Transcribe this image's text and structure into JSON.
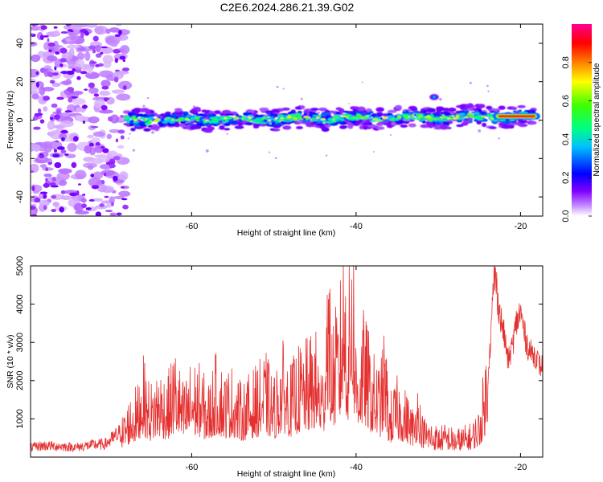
{
  "figure_title": "C2E6.2024.286.21.39.G02",
  "colors": {
    "snr_line": "#e53030",
    "frame": "#000000"
  },
  "chart_data": [
    {
      "type": "heatmap",
      "title": "",
      "xlabel": "Height of straight line (km)",
      "ylabel": "Frequency (Hz)",
      "xlim": [
        -79.6,
        -17.3
      ],
      "ylim": [
        -50,
        50
      ],
      "x_ticks": [
        -60,
        -40,
        -20
      ],
      "y_ticks": [
        40,
        20,
        0,
        -20,
        -40
      ],
      "x_tick_labels": [
        "-60",
        "-40",
        "-20"
      ],
      "y_tick_labels": [
        "40",
        "20",
        "0",
        "-20",
        "-40"
      ],
      "colorbar": {
        "label": "Normalized spectral amplitude",
        "range": [
          0.0,
          1.0
        ],
        "ticks": [
          0.0,
          0.2,
          0.4,
          0.6,
          0.8
        ],
        "tick_labels": [
          "0.0",
          "0.2",
          "0.4",
          "0.6",
          "0.8"
        ],
        "colormap": [
          "#ffffff",
          "#a000ff",
          "#0000ff",
          "#00ffff",
          "#00ff00",
          "#ffff00",
          "#ff8000",
          "#ff0000",
          "#ff00a0"
        ]
      },
      "features": [
        {
          "name": "noise region",
          "x_range": [
            -79.6,
            -68
          ],
          "f_range": [
            -50,
            50
          ],
          "amplitude": 0.15
        },
        {
          "name": "signal band",
          "x_range": [
            -68,
            -18
          ],
          "f_center": [
            -68,
            0,
            -18,
            2
          ],
          "amplitude": 0.6
        },
        {
          "name": "strong tone",
          "x_range": [
            -23,
            -18
          ],
          "f_center": 2,
          "amplitude": 1.0
        },
        {
          "name": "isolated blob",
          "x": -30.5,
          "f": 12,
          "amplitude": 0.3
        }
      ]
    },
    {
      "type": "line",
      "title": "",
      "xlabel": "Height of straight line (km)",
      "ylabel": "SNR (10 * v/v)",
      "xlim": [
        -79.6,
        -17.3
      ],
      "ylim": [
        0,
        5000
      ],
      "x_ticks": [
        -60,
        -40,
        -20
      ],
      "y_ticks": [
        1000,
        2000,
        3000,
        4000,
        5000
      ],
      "x_tick_labels": [
        "-60",
        "-40",
        "-20"
      ],
      "y_tick_labels": [
        "1000",
        "2000",
        "3000",
        "4000",
        "5000"
      ],
      "series": [
        {
          "x": [
            -79.6,
            -78,
            -76,
            -74,
            -72,
            -70.5,
            -69.5,
            -68.5,
            -67.5,
            -66.5,
            -66,
            -65.5,
            -65,
            -64,
            -63,
            -62,
            -61,
            -60,
            -59,
            -58,
            -57,
            -56,
            -55,
            -54,
            -53,
            -52,
            -51,
            -50,
            -49,
            -48,
            -47,
            -46,
            -45,
            -44,
            -43.5,
            -43,
            -42,
            -41.5,
            -41,
            -40.5,
            -40,
            -39,
            -38,
            -37,
            -36.5,
            -36,
            -35,
            -34,
            -33,
            -32.5,
            -32,
            -31,
            -30,
            -29,
            -28,
            -27,
            -26,
            -25,
            -24,
            -23.6,
            -23.2,
            -23,
            -22.5,
            -22,
            -21.5,
            -21,
            -20.5,
            -20,
            -19.5,
            -19,
            -18.5,
            -18,
            -17.5,
            -17.3
          ],
          "y": [
            250,
            300,
            280,
            260,
            320,
            340,
            500,
            650,
            1000,
            1200,
            1700,
            1400,
            1200,
            1500,
            1300,
            1800,
            1200,
            1600,
            1500,
            1200,
            1700,
            1400,
            1500,
            1200,
            1350,
            1500,
            1700,
            1300,
            1900,
            1500,
            1800,
            1900,
            2100,
            1500,
            3800,
            2200,
            2600,
            4200,
            2400,
            4600,
            2000,
            2400,
            1700,
            1500,
            2200,
            1000,
            1300,
            1100,
            800,
            1300,
            700,
            600,
            500,
            550,
            450,
            500,
            550,
            800,
            2000,
            3200,
            4800,
            4600,
            3700,
            3200,
            2500,
            2900,
            3500,
            3800,
            3200,
            2800,
            2700,
            2600,
            2300,
            2500
          ]
        }
      ]
    }
  ]
}
